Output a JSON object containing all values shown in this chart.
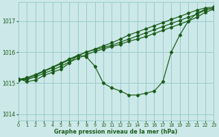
{
  "title": "Graphe pression niveau de la mer (hPa)",
  "background_color": "#cce8e8",
  "grid_color": "#99cccc",
  "line_color": "#1a5c1a",
  "xlim": [
    0,
    23
  ],
  "ylim": [
    1013.8,
    1017.6
  ],
  "yticks": [
    1014,
    1015,
    1016,
    1017
  ],
  "xticks": [
    0,
    1,
    2,
    3,
    4,
    5,
    6,
    7,
    8,
    9,
    10,
    11,
    12,
    13,
    14,
    15,
    16,
    17,
    18,
    19,
    20,
    21,
    22,
    23
  ],
  "series": [
    [
      1015.15,
      1015.05,
      1015.1,
      1015.25,
      1015.35,
      1015.45,
      1015.65,
      1015.9,
      1015.85,
      1015.55,
      1015.0,
      1014.85,
      1014.75,
      1014.62,
      1014.62,
      1014.68,
      1014.75,
      1015.05,
      1016.0,
      1016.55,
      1017.0,
      1017.25,
      1017.38,
      1017.4
    ],
    [
      1015.1,
      1015.15,
      1015.25,
      1015.38,
      1015.5,
      1015.62,
      1015.75,
      1015.88,
      1016.0,
      1016.1,
      1016.2,
      1016.3,
      1016.42,
      1016.55,
      1016.65,
      1016.75,
      1016.85,
      1016.95,
      1017.05,
      1017.15,
      1017.25,
      1017.35,
      1017.42,
      1017.45
    ],
    [
      1015.12,
      1015.18,
      1015.28,
      1015.4,
      1015.52,
      1015.65,
      1015.78,
      1015.9,
      1016.0,
      1016.08,
      1016.15,
      1016.22,
      1016.32,
      1016.42,
      1016.52,
      1016.62,
      1016.72,
      1016.82,
      1016.92,
      1017.02,
      1017.12,
      1017.22,
      1017.35,
      1017.42
    ],
    [
      1015.1,
      1015.12,
      1015.2,
      1015.32,
      1015.42,
      1015.55,
      1015.68,
      1015.8,
      1015.92,
      1016.02,
      1016.1,
      1016.18,
      1016.25,
      1016.35,
      1016.42,
      1016.5,
      1016.6,
      1016.7,
      1016.8,
      1016.9,
      1017.0,
      1017.12,
      1017.28,
      1017.38
    ]
  ]
}
